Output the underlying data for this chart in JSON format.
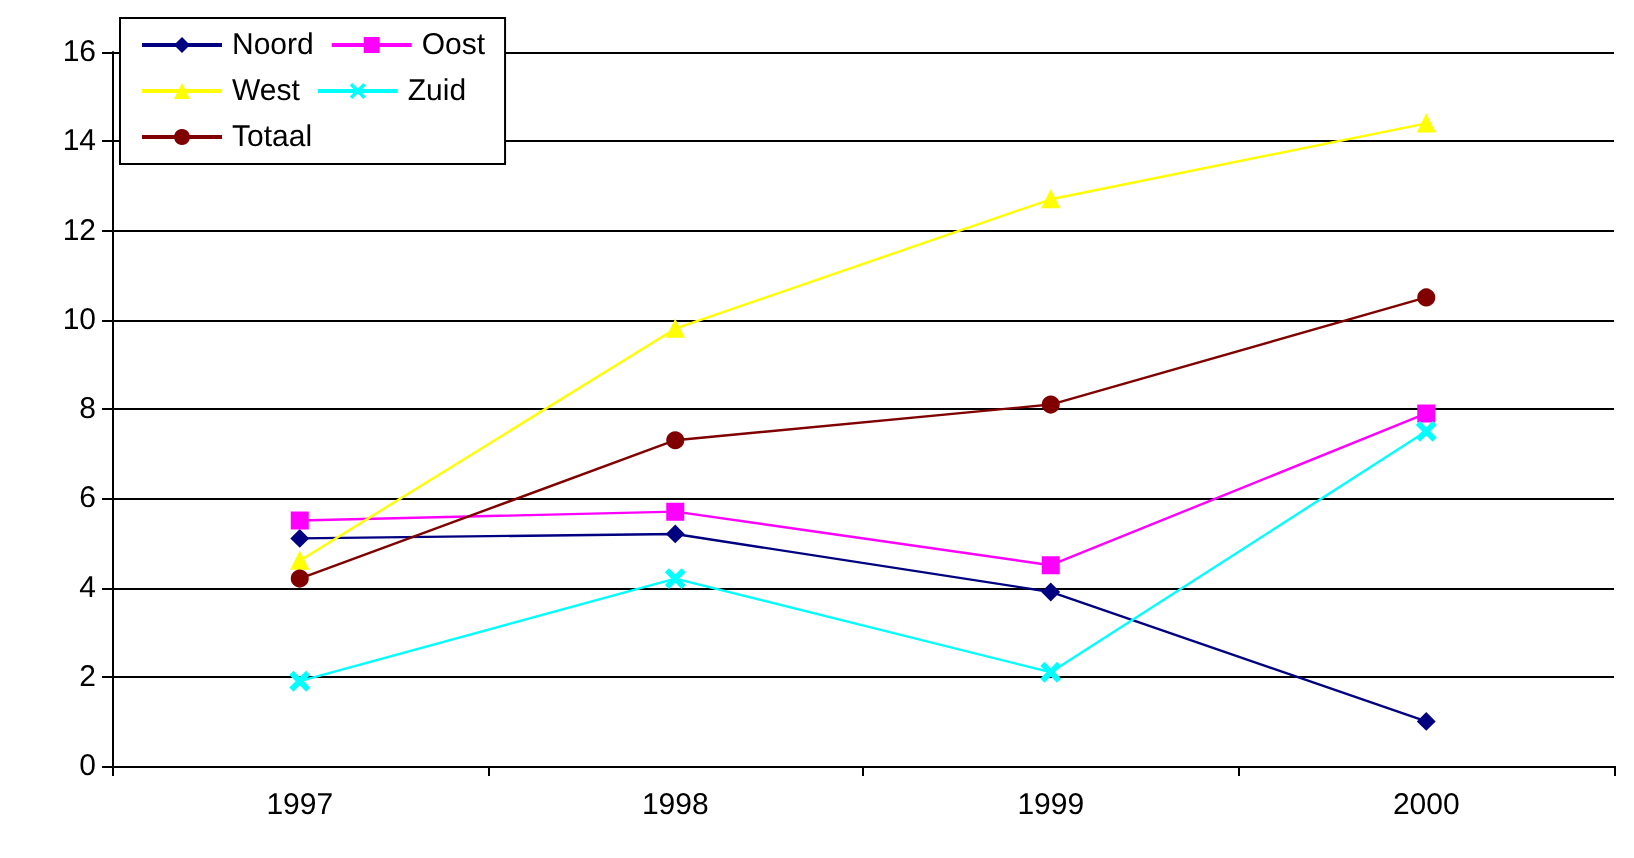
{
  "chart_data": {
    "type": "line",
    "categories": [
      "1997",
      "1998",
      "1999",
      "2000"
    ],
    "series": [
      {
        "name": "Noord",
        "color": "#000080",
        "marker": "diamond",
        "values": [
          5.1,
          5.2,
          3.9,
          1.0
        ]
      },
      {
        "name": "Oost",
        "color": "#ff00ff",
        "marker": "square",
        "values": [
          5.5,
          5.7,
          4.5,
          7.9
        ]
      },
      {
        "name": "West",
        "color": "#ffff00",
        "marker": "triangle",
        "values": [
          4.6,
          9.8,
          12.7,
          14.4
        ]
      },
      {
        "name": "Zuid",
        "color": "#00ffff",
        "marker": "cross",
        "values": [
          1.9,
          4.2,
          2.1,
          7.5
        ]
      },
      {
        "name": "Totaal",
        "color": "#800000",
        "marker": "circle",
        "values": [
          4.2,
          7.3,
          8.1,
          10.5
        ]
      }
    ],
    "ylim": [
      0,
      16
    ],
    "yticks": [
      0,
      2,
      4,
      6,
      8,
      10,
      12,
      14,
      16
    ],
    "grid": "y",
    "legend": "top left"
  }
}
